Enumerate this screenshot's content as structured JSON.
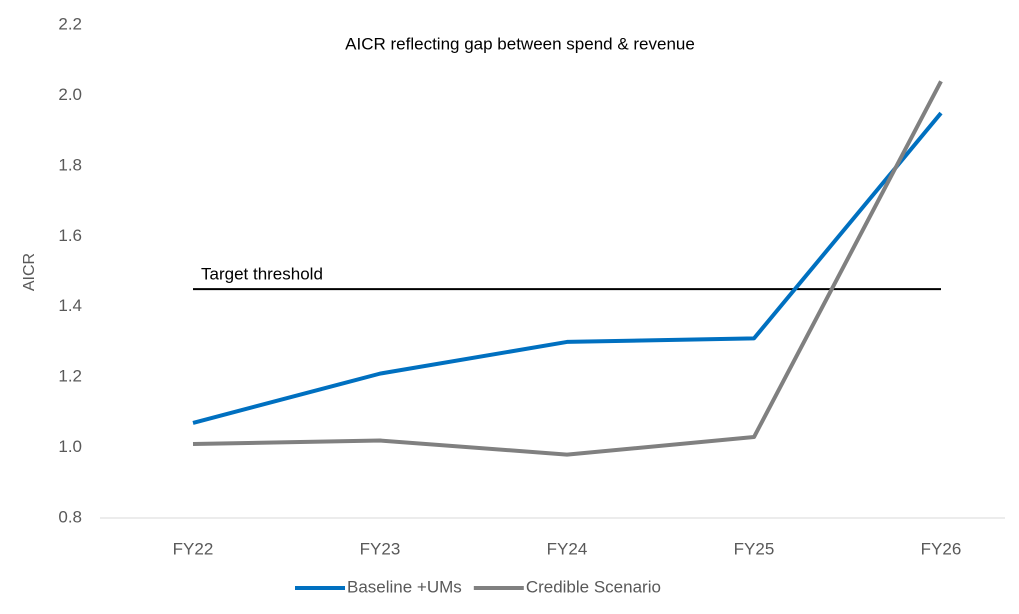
{
  "chart_data": {
    "type": "line",
    "title": "AICR reflecting gap between spend & revenue",
    "y_label": "AICR",
    "categories": [
      "FY22",
      "FY23",
      "FY24",
      "FY25",
      "FY26"
    ],
    "series": [
      {
        "name": "Baseline +UMs",
        "color": "#0070c0",
        "values": [
          1.07,
          1.21,
          1.3,
          1.31,
          1.95
        ]
      },
      {
        "name": "Credible Scenario",
        "color": "#808080",
        "values": [
          1.01,
          1.02,
          0.98,
          1.03,
          2.04
        ]
      }
    ],
    "threshold": {
      "label": "Target threshold",
      "value": 1.45
    },
    "ylim": [
      0.8,
      2.2
    ],
    "yticks": [
      0.8,
      {
        "value": 1.0,
        "label": "1.0"
      },
      1.2,
      1.4,
      1.6,
      1.8,
      {
        "value": 2.0,
        "label": "2.0"
      },
      2.2
    ],
    "grid": false,
    "legend": "bottom"
  }
}
